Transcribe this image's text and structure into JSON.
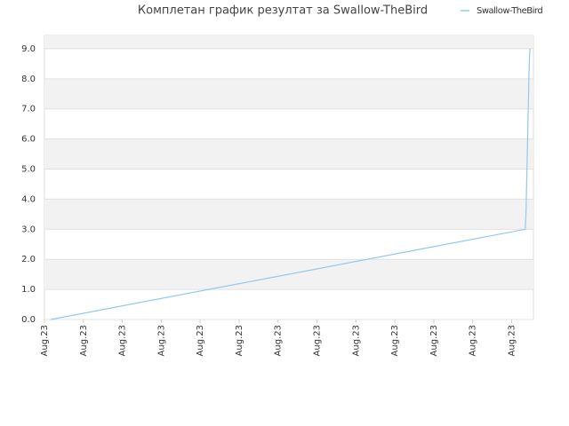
{
  "chart_data": {
    "type": "line",
    "title": "Комплетан график резултат за Swallow-TheBird",
    "series": [
      {
        "name": "Swallow-TheBird",
        "color": "#94c8f0",
        "x": [
          0.16,
          12.35,
          12.37,
          12.39,
          12.41,
          12.43,
          12.45,
          12.47
        ],
        "values": [
          0,
          3.0,
          3.6,
          4.8,
          6.0,
          7.2,
          8.4,
          9.0
        ]
      }
    ],
    "xlim": [
      0,
      12.56
    ],
    "xticks": [
      {
        "value": 0,
        "label": "Aug.23"
      },
      {
        "value": 1,
        "label": "Aug.23"
      },
      {
        "value": 2,
        "label": "Aug.23"
      },
      {
        "value": 3,
        "label": "Aug.23"
      },
      {
        "value": 4,
        "label": "Aug.23"
      },
      {
        "value": 5,
        "label": "Aug.23"
      },
      {
        "value": 6,
        "label": "Aug.23"
      },
      {
        "value": 7,
        "label": "Aug.23"
      },
      {
        "value": 8,
        "label": "Aug.23"
      },
      {
        "value": 9,
        "label": "Aug.23"
      },
      {
        "value": 10,
        "label": "Aug.23"
      },
      {
        "value": 11,
        "label": "Aug.23"
      },
      {
        "value": 12,
        "label": "Aug.23"
      }
    ],
    "ylim": [
      0,
      9.44
    ],
    "yticks": [
      {
        "value": 0,
        "label": "0.0"
      },
      {
        "value": 1,
        "label": "1.0"
      },
      {
        "value": 2,
        "label": "2.0"
      },
      {
        "value": 3,
        "label": "3.0"
      },
      {
        "value": 4,
        "label": "4.0"
      },
      {
        "value": 5,
        "label": "5.0"
      },
      {
        "value": 6,
        "label": "6.0"
      },
      {
        "value": 7,
        "label": "7.0"
      },
      {
        "value": 8,
        "label": "8.0"
      },
      {
        "value": 9,
        "label": "9.0"
      }
    ],
    "grid": true,
    "legend": "top-right"
  }
}
